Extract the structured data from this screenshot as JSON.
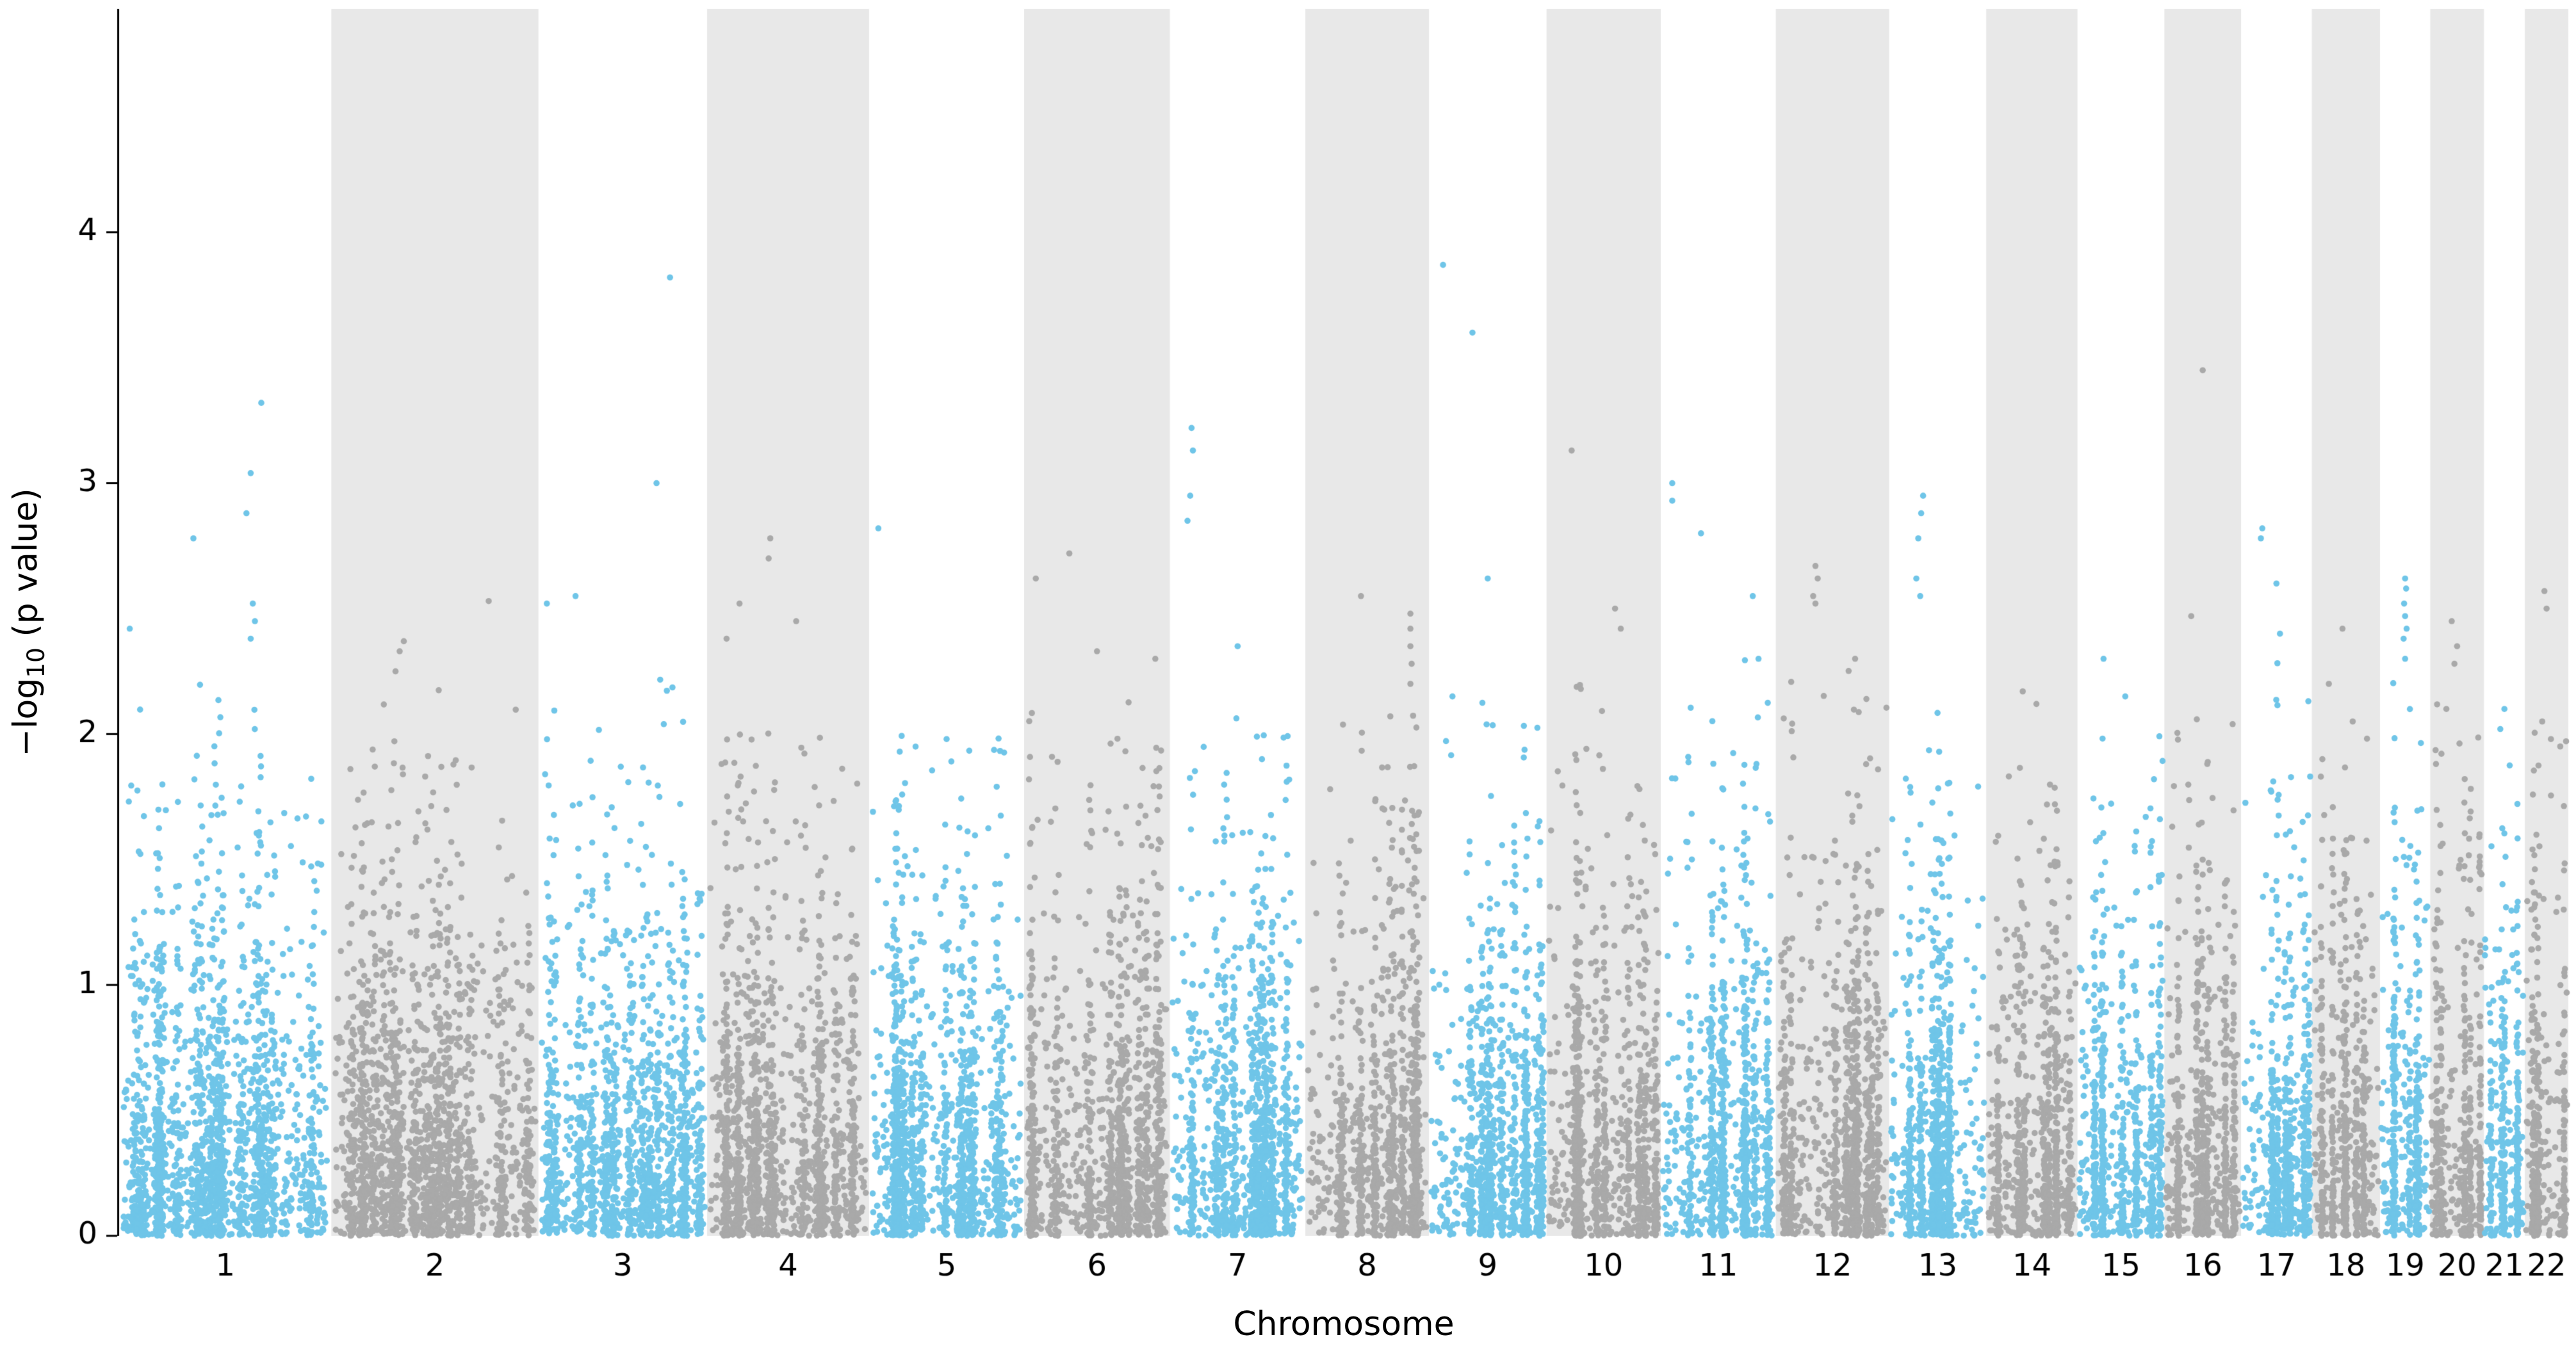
{
  "chart_data": {
    "type": "scatter",
    "subtype": "manhattan-plot",
    "title": "",
    "xlabel": "Chromosome",
    "ylabel": "−log10 (p value)",
    "ylabel_parts": {
      "pre": "−log",
      "sub": "10",
      "post": " (p value)"
    },
    "ylim": [
      0,
      4.89
    ],
    "yticks": [
      0,
      1,
      2,
      3,
      4
    ],
    "grid": false,
    "legend": "none",
    "colors": {
      "odd_chromosome_points": "#6FC5E8",
      "even_chromosome_points": "#A9A9A9",
      "band": "#E8E8E8",
      "axis": "#000000",
      "background": "#FFFFFF"
    },
    "point_model": "null GWAS p-values: y = -log10(p), p ~ uniform, dense near 0, sparse above 2",
    "chromosomes": [
      {
        "label": "1",
        "size_mb": 249,
        "band": false,
        "n_points": 1992,
        "bulk_max": 2.2,
        "peaks": [
          {
            "rx": 0.67,
            "y": 3.32
          },
          {
            "rx": 0.62,
            "y": 3.04
          },
          {
            "rx": 0.6,
            "y": 2.88
          },
          {
            "rx": 0.35,
            "y": 2.78
          },
          {
            "rx": 0.63,
            "y": 2.52
          },
          {
            "rx": 0.64,
            "y": 2.45
          },
          {
            "rx": 0.05,
            "y": 2.42
          },
          {
            "rx": 0.62,
            "y": 2.38
          }
        ]
      },
      {
        "label": "2",
        "size_mb": 243,
        "band": true,
        "n_points": 1944,
        "bulk_max": 2.2,
        "peaks": [
          {
            "rx": 0.76,
            "y": 2.53
          },
          {
            "rx": 0.35,
            "y": 2.37
          },
          {
            "rx": 0.33,
            "y": 2.33
          },
          {
            "rx": 0.31,
            "y": 2.25
          }
        ]
      },
      {
        "label": "3",
        "size_mb": 198,
        "band": false,
        "n_points": 1584,
        "bulk_max": 2.3,
        "peaks": [
          {
            "rx": 0.78,
            "y": 3.82
          },
          {
            "rx": 0.7,
            "y": 3.0
          },
          {
            "rx": 0.22,
            "y": 2.55
          },
          {
            "rx": 0.05,
            "y": 2.52
          }
        ]
      },
      {
        "label": "4",
        "size_mb": 190,
        "band": true,
        "n_points": 1520,
        "bulk_max": 2.2,
        "peaks": [
          {
            "rx": 0.39,
            "y": 2.78
          },
          {
            "rx": 0.38,
            "y": 2.7
          },
          {
            "rx": 0.2,
            "y": 2.52
          },
          {
            "rx": 0.55,
            "y": 2.45
          },
          {
            "rx": 0.12,
            "y": 2.38
          }
        ]
      },
      {
        "label": "5",
        "size_mb": 182,
        "band": false,
        "n_points": 1456,
        "bulk_max": 2.0,
        "peaks": [
          {
            "rx": 0.06,
            "y": 2.82
          },
          {
            "rx": 0.5,
            "y": 1.98
          },
          {
            "rx": 0.3,
            "y": 1.95
          }
        ]
      },
      {
        "label": "6",
        "size_mb": 171,
        "band": true,
        "n_points": 1368,
        "bulk_max": 2.2,
        "peaks": [
          {
            "rx": 0.31,
            "y": 2.72
          },
          {
            "rx": 0.08,
            "y": 2.62
          },
          {
            "rx": 0.5,
            "y": 2.33
          },
          {
            "rx": 0.9,
            "y": 2.3
          }
        ]
      },
      {
        "label": "7",
        "size_mb": 159,
        "band": false,
        "n_points": 1272,
        "bulk_max": 2.2,
        "peaks": [
          {
            "rx": 0.16,
            "y": 3.22
          },
          {
            "rx": 0.17,
            "y": 3.13
          },
          {
            "rx": 0.15,
            "y": 2.95
          },
          {
            "rx": 0.13,
            "y": 2.85
          },
          {
            "rx": 0.5,
            "y": 2.35
          }
        ]
      },
      {
        "label": "8",
        "size_mb": 145,
        "band": true,
        "n_points": 1160,
        "bulk_max": 2.1,
        "peaks": [
          {
            "rx": 0.45,
            "y": 2.55
          },
          {
            "rx": 0.85,
            "y": 2.48
          },
          {
            "rx": 0.85,
            "y": 2.42
          },
          {
            "rx": 0.85,
            "y": 2.35
          },
          {
            "rx": 0.86,
            "y": 2.28
          },
          {
            "rx": 0.85,
            "y": 2.2
          }
        ]
      },
      {
        "label": "9",
        "size_mb": 138,
        "band": false,
        "n_points": 1104,
        "bulk_max": 2.15,
        "peaks": [
          {
            "rx": 0.12,
            "y": 3.87
          },
          {
            "rx": 0.37,
            "y": 3.6
          },
          {
            "rx": 0.5,
            "y": 2.62
          },
          {
            "rx": 0.2,
            "y": 2.15
          }
        ]
      },
      {
        "label": "10",
        "size_mb": 134,
        "band": true,
        "n_points": 1072,
        "bulk_max": 2.2,
        "peaks": [
          {
            "rx": 0.22,
            "y": 3.13
          },
          {
            "rx": 0.6,
            "y": 2.5
          },
          {
            "rx": 0.65,
            "y": 2.42
          },
          {
            "rx": 0.3,
            "y": 2.18
          }
        ]
      },
      {
        "label": "11",
        "size_mb": 135,
        "band": false,
        "n_points": 1080,
        "bulk_max": 2.3,
        "peaks": [
          {
            "rx": 0.1,
            "y": 3.0
          },
          {
            "rx": 0.1,
            "y": 2.93
          },
          {
            "rx": 0.35,
            "y": 2.8
          },
          {
            "rx": 0.8,
            "y": 2.55
          },
          {
            "rx": 0.85,
            "y": 2.3
          }
        ]
      },
      {
        "label": "12",
        "size_mb": 133,
        "band": true,
        "n_points": 1064,
        "bulk_max": 2.3,
        "peaks": [
          {
            "rx": 0.35,
            "y": 2.67
          },
          {
            "rx": 0.37,
            "y": 2.62
          },
          {
            "rx": 0.33,
            "y": 2.55
          },
          {
            "rx": 0.35,
            "y": 2.52
          },
          {
            "rx": 0.7,
            "y": 2.3
          }
        ]
      },
      {
        "label": "13",
        "size_mb": 114,
        "band": false,
        "n_points": 912,
        "bulk_max": 2.2,
        "peaks": [
          {
            "rx": 0.35,
            "y": 2.95
          },
          {
            "rx": 0.33,
            "y": 2.88
          },
          {
            "rx": 0.3,
            "y": 2.78
          },
          {
            "rx": 0.28,
            "y": 2.62
          },
          {
            "rx": 0.32,
            "y": 2.55
          }
        ]
      },
      {
        "label": "14",
        "size_mb": 107,
        "band": true,
        "n_points": 856,
        "bulk_max": 2.0,
        "peaks": [
          {
            "rx": 0.4,
            "y": 2.17
          },
          {
            "rx": 0.55,
            "y": 2.12
          }
        ]
      },
      {
        "label": "15",
        "size_mb": 102,
        "band": false,
        "n_points": 816,
        "bulk_max": 2.1,
        "peaks": [
          {
            "rx": 0.3,
            "y": 2.3
          },
          {
            "rx": 0.55,
            "y": 2.15
          }
        ]
      },
      {
        "label": "16",
        "size_mb": 90,
        "band": true,
        "n_points": 720,
        "bulk_max": 2.1,
        "peaks": [
          {
            "rx": 0.5,
            "y": 3.45
          },
          {
            "rx": 0.35,
            "y": 2.47
          }
        ]
      },
      {
        "label": "17",
        "size_mb": 83,
        "band": false,
        "n_points": 664,
        "bulk_max": 2.3,
        "peaks": [
          {
            "rx": 0.3,
            "y": 2.82
          },
          {
            "rx": 0.28,
            "y": 2.78
          },
          {
            "rx": 0.5,
            "y": 2.6
          },
          {
            "rx": 0.55,
            "y": 2.4
          }
        ]
      },
      {
        "label": "18",
        "size_mb": 80,
        "band": true,
        "n_points": 640,
        "bulk_max": 2.1,
        "peaks": [
          {
            "rx": 0.45,
            "y": 2.42
          },
          {
            "rx": 0.25,
            "y": 2.2
          },
          {
            "rx": 0.6,
            "y": 2.05
          }
        ]
      },
      {
        "label": "19",
        "size_mb": 59,
        "band": false,
        "n_points": 472,
        "bulk_max": 2.3,
        "peaks": [
          {
            "rx": 0.5,
            "y": 2.62
          },
          {
            "rx": 0.52,
            "y": 2.58
          },
          {
            "rx": 0.48,
            "y": 2.52
          },
          {
            "rx": 0.5,
            "y": 2.47
          },
          {
            "rx": 0.53,
            "y": 2.42
          },
          {
            "rx": 0.47,
            "y": 2.38
          },
          {
            "rx": 0.5,
            "y": 2.3
          }
        ]
      },
      {
        "label": "20",
        "size_mb": 63,
        "band": true,
        "n_points": 504,
        "bulk_max": 2.15,
        "peaks": [
          {
            "rx": 0.4,
            "y": 2.45
          },
          {
            "rx": 0.5,
            "y": 2.35
          },
          {
            "rx": 0.45,
            "y": 2.28
          },
          {
            "rx": 0.3,
            "y": 2.1
          }
        ]
      },
      {
        "label": "21",
        "size_mb": 48,
        "band": false,
        "n_points": 384,
        "bulk_max": 1.95,
        "peaks": [
          {
            "rx": 0.5,
            "y": 2.1
          },
          {
            "rx": 0.4,
            "y": 2.02
          }
        ]
      },
      {
        "label": "22",
        "size_mb": 51,
        "band": true,
        "n_points": 408,
        "bulk_max": 2.1,
        "peaks": [
          {
            "rx": 0.45,
            "y": 2.57
          },
          {
            "rx": 0.5,
            "y": 2.5
          },
          {
            "rx": 0.4,
            "y": 2.05
          },
          {
            "rx": 0.6,
            "y": 1.98
          }
        ]
      }
    ]
  }
}
